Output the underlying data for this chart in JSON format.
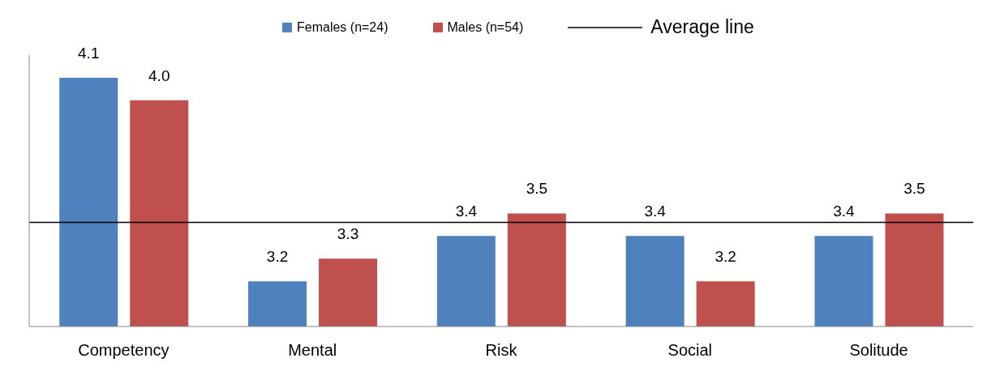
{
  "chart_data": {
    "type": "bar",
    "categories": [
      "Competency",
      "Mental",
      "Risk",
      "Social",
      "Solitude"
    ],
    "series": [
      {
        "name": "Females (n=24)",
        "color": "#4f81bd",
        "values": [
          4.1,
          3.2,
          3.4,
          3.4,
          3.4
        ],
        "value_labels": [
          "4.1",
          "3.2",
          "3.4",
          "3.4",
          "3.4"
        ]
      },
      {
        "name": "Males (n=54)",
        "color": "#c0504d",
        "values": [
          4.0,
          3.3,
          3.5,
          3.2,
          3.5
        ],
        "value_labels": [
          "4.0",
          "3.3",
          "3.5",
          "3.2",
          "3.5"
        ]
      }
    ],
    "ylim": [
      3.0,
      4.2
    ],
    "tick_labels": "x",
    "legend": "top",
    "ref_lines": [
      {
        "axis": "y",
        "value": 3.46,
        "label": "Average line",
        "color": "#000000",
        "line_style": "solid"
      }
    ]
  }
}
